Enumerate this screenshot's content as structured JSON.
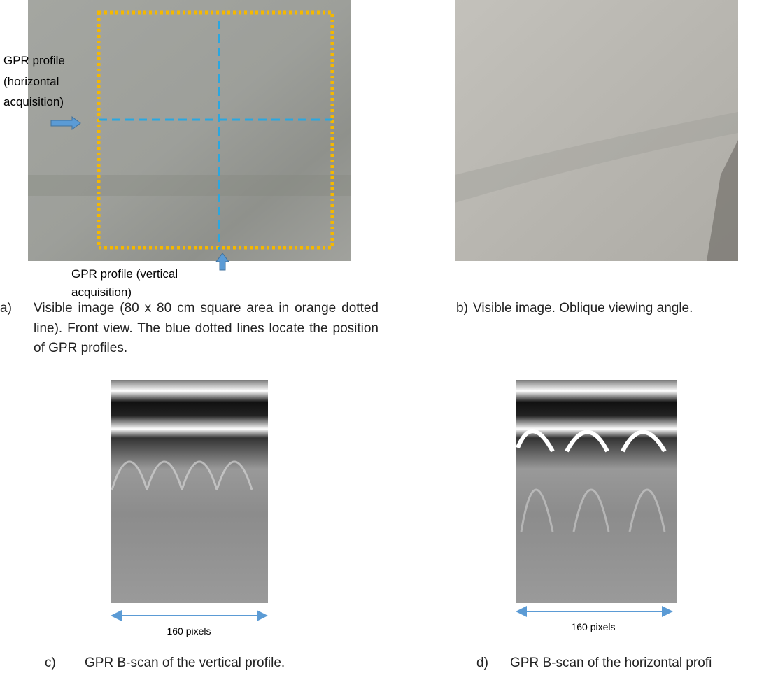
{
  "figure": {
    "panel_a": {
      "horizontal_profile_label": [
        "GPR profile",
        "(horizontal",
        "acquisition)"
      ],
      "vertical_profile_label": [
        "GPR profile (vertical",
        "acquisition)"
      ],
      "label": "a)",
      "caption": "Visible image (80 x 80 cm square area in orange dotted line). Front view. The blue dotted lines locate the position of GPR profiles."
    },
    "panel_b": {
      "label": "b)",
      "caption": "Visible image. Oblique viewing angle."
    },
    "panel_c": {
      "scale_label": "160 pixels",
      "label": "c)",
      "caption": "GPR B-scan of the vertical profile."
    },
    "panel_d": {
      "scale_label": "160 pixels",
      "label": "d)",
      "caption": "GPR B-scan of the horizontal profi"
    }
  }
}
